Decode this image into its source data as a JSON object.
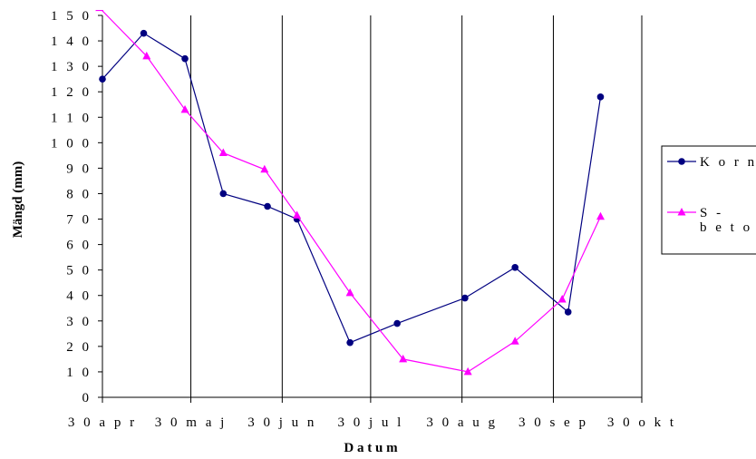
{
  "chart_data": {
    "type": "line",
    "title": "",
    "xlabel": "D a t u m",
    "ylabel": "Mängd (mm)",
    "ylim": [
      0,
      150
    ],
    "yticks": [
      0,
      10,
      20,
      30,
      40,
      50,
      60,
      70,
      80,
      90,
      100,
      110,
      120,
      130,
      140,
      150
    ],
    "ytick_labels": [
      "0",
      "1 0",
      "2 0",
      "3 0",
      "4 0",
      "5 0",
      "6 0",
      "7 0",
      "8 0",
      "9 0",
      "1 0 0",
      "1 1 0",
      "1 2 0",
      "1 3 0",
      "1 4 0",
      "1 5 0"
    ],
    "xlim": [
      "2004-04-30",
      "2004-10-30"
    ],
    "xticks": [
      "2004-04-30",
      "2004-05-30",
      "2004-06-30",
      "2004-07-30",
      "2004-08-30",
      "2004-09-30",
      "2004-10-30"
    ],
    "xtick_labels": [
      "3 0  a p r",
      "3 0  m a j",
      "3 0  j u n",
      "3 0  j u l",
      "3 0  a u g",
      "3 0  s e p",
      "3 0  o k t"
    ],
    "grid": "vertical",
    "legend_position": "right",
    "series": [
      {
        "name": "K o r n",
        "color": "#000080",
        "marker": "circle",
        "points": [
          [
            "2004-04-30",
            125
          ],
          [
            "2004-05-14",
            143
          ],
          [
            "2004-05-28",
            133
          ],
          [
            "2004-06-10",
            80
          ],
          [
            "2004-06-25",
            75
          ],
          [
            "2004-07-05",
            70
          ],
          [
            "2004-07-23",
            21.5
          ],
          [
            "2004-08-08",
            29
          ],
          [
            "2004-08-31",
            39
          ],
          [
            "2004-09-17",
            51
          ],
          [
            "2004-10-05",
            33.5
          ],
          [
            "2004-10-16",
            118
          ]
        ]
      },
      {
        "name": "S -\nb e t o r",
        "color": "#ff00ff",
        "marker": "triangle",
        "points": [
          [
            "2004-04-29",
            153
          ],
          [
            "2004-05-15",
            134
          ],
          [
            "2004-05-28",
            113
          ],
          [
            "2004-06-10",
            96
          ],
          [
            "2004-06-24",
            89.5
          ],
          [
            "2004-07-05",
            71.5
          ],
          [
            "2004-07-23",
            41
          ],
          [
            "2004-08-10",
            15
          ],
          [
            "2004-09-01",
            10
          ],
          [
            "2004-09-17",
            22
          ],
          [
            "2004-10-03",
            38.5
          ],
          [
            "2004-10-16",
            71
          ]
        ]
      }
    ]
  }
}
